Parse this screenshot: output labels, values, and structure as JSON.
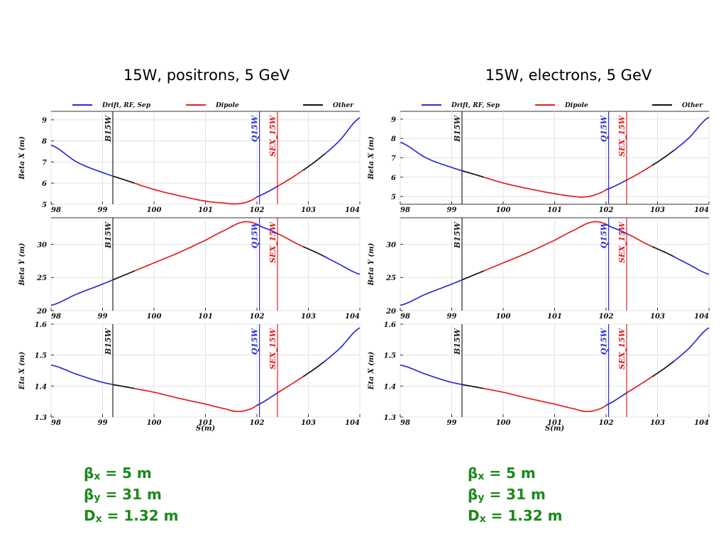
{
  "titles": {
    "left": "15W, positrons, 5 GeV",
    "right": "15W, electrons, 5 GeV"
  },
  "legend": [
    {
      "label": "Drift, RF, Sep",
      "color": "#2b2bd6"
    },
    {
      "label": "Dipole",
      "color": "#e02020"
    },
    {
      "label": "Other",
      "color": "#111111"
    }
  ],
  "markers": [
    {
      "label": "B15W",
      "s": 99.2,
      "color": "#222222"
    },
    {
      "label": "Q15W",
      "s": 102.05,
      "color": "#2b2bd6"
    },
    {
      "label": "SEX_15W",
      "s": 102.4,
      "color": "#e02020"
    }
  ],
  "xaxis": {
    "label": "S(m)",
    "range": [
      98,
      104
    ],
    "ticks": [
      98,
      99,
      100,
      101,
      102,
      103,
      104
    ]
  },
  "chart_data": [
    {
      "type": "line",
      "panel": "left",
      "subplots": [
        {
          "ylabel": "Beta X (m)",
          "ylim": [
            5,
            9.4
          ],
          "yticks": [
            5,
            6,
            7,
            8,
            9
          ],
          "x": [
            98,
            98.5,
            99,
            99.5,
            100,
            100.5,
            101,
            101.4,
            101.6,
            101.8,
            102,
            102.4,
            102.8,
            103.2,
            103.6,
            104
          ],
          "y": [
            7.8,
            7.0,
            6.5,
            6.1,
            5.7,
            5.4,
            5.15,
            5.05,
            5.02,
            5.1,
            5.35,
            5.85,
            6.45,
            7.15,
            8.0,
            9.1
          ]
        },
        {
          "ylabel": "Beta Y (m)",
          "ylim": [
            20,
            34
          ],
          "yticks": [
            20,
            25,
            30
          ],
          "x": [
            98,
            98.5,
            99,
            99.5,
            100,
            100.5,
            101,
            101.4,
            101.7,
            101.9,
            102.1,
            102.4,
            102.8,
            103.2,
            103.6,
            104
          ],
          "y": [
            20.8,
            22.5,
            24.0,
            25.6,
            27.2,
            28.8,
            30.6,
            32.2,
            33.3,
            33.3,
            32.6,
            31.6,
            30.0,
            28.6,
            27.0,
            25.5
          ]
        },
        {
          "ylabel": "Eta X (m)",
          "ylim": [
            1.3,
            1.6
          ],
          "yticks": [
            1.3,
            1.4,
            1.5,
            1.6
          ],
          "x": [
            98,
            98.5,
            99,
            99.5,
            100,
            100.5,
            101,
            101.4,
            101.6,
            101.8,
            102,
            102.4,
            102.8,
            103.2,
            103.6,
            104
          ],
          "y": [
            1.468,
            1.438,
            1.412,
            1.396,
            1.38,
            1.36,
            1.342,
            1.326,
            1.318,
            1.322,
            1.338,
            1.378,
            1.42,
            1.465,
            1.52,
            1.588
          ]
        }
      ]
    },
    {
      "type": "line",
      "panel": "right",
      "subplots": [
        {
          "ylabel": "Beta X (m)",
          "ylim": [
            4.6,
            9.4
          ],
          "yticks": [
            5,
            6,
            7,
            8,
            9
          ],
          "x": [
            98,
            98.5,
            99,
            99.5,
            100,
            100.5,
            101,
            101.4,
            101.6,
            101.8,
            102,
            102.4,
            102.8,
            103.2,
            103.6,
            104
          ],
          "y": [
            7.8,
            7.0,
            6.5,
            6.1,
            5.7,
            5.4,
            5.15,
            5.0,
            4.98,
            5.1,
            5.35,
            5.85,
            6.45,
            7.15,
            8.0,
            9.1
          ]
        },
        {
          "ylabel": "Beta Y (m)",
          "ylim": [
            20,
            34
          ],
          "yticks": [
            20,
            25,
            30
          ],
          "x": [
            98,
            98.5,
            99,
            99.5,
            100,
            100.5,
            101,
            101.4,
            101.7,
            101.9,
            102.1,
            102.4,
            102.8,
            103.2,
            103.6,
            104
          ],
          "y": [
            20.8,
            22.5,
            24.0,
            25.6,
            27.2,
            28.8,
            30.6,
            32.2,
            33.3,
            33.3,
            32.6,
            31.6,
            30.0,
            28.6,
            27.0,
            25.5
          ]
        },
        {
          "ylabel": "Eta X (m)",
          "ylim": [
            1.3,
            1.6
          ],
          "yticks": [
            1.3,
            1.4,
            1.5,
            1.6
          ],
          "x": [
            98,
            98.5,
            99,
            99.5,
            100,
            100.5,
            101,
            101.4,
            101.6,
            101.8,
            102,
            102.4,
            102.8,
            103.2,
            103.6,
            104
          ],
          "y": [
            1.468,
            1.438,
            1.412,
            1.396,
            1.38,
            1.36,
            1.342,
            1.326,
            1.318,
            1.322,
            1.338,
            1.378,
            1.42,
            1.465,
            1.52,
            1.588
          ]
        }
      ]
    }
  ],
  "color_segments": [
    {
      "from": 98,
      "to": 99.2,
      "color": "#2b2bd6"
    },
    {
      "from": 99.2,
      "to": 99.6,
      "color": "#111111"
    },
    {
      "from": 99.6,
      "to": 101.5,
      "color": "#e02020"
    },
    {
      "from": 101.5,
      "to": 102.0,
      "color": "#e02020"
    },
    {
      "from": 102.0,
      "to": 102.4,
      "color": "#2b2bd6"
    },
    {
      "from": 102.4,
      "to": 102.9,
      "color": "#e02020"
    },
    {
      "from": 102.9,
      "to": 103.3,
      "color": "#111111"
    },
    {
      "from": 103.3,
      "to": 104,
      "color": "#2b2bd6"
    }
  ],
  "params": {
    "left": [
      {
        "sym": "β",
        "sub": "x",
        "val": "= 5 m"
      },
      {
        "sym": "β",
        "sub": "y",
        "val": "= 31 m"
      },
      {
        "sym": "D",
        "sub": "x",
        "val": "= 1.32 m"
      }
    ],
    "right": [
      {
        "sym": "β",
        "sub": "x",
        "val": "= 5 m"
      },
      {
        "sym": "β",
        "sub": "y",
        "val": "= 31 m"
      },
      {
        "sym": "D",
        "sub": "x",
        "val": "= 1.32 m"
      }
    ]
  }
}
